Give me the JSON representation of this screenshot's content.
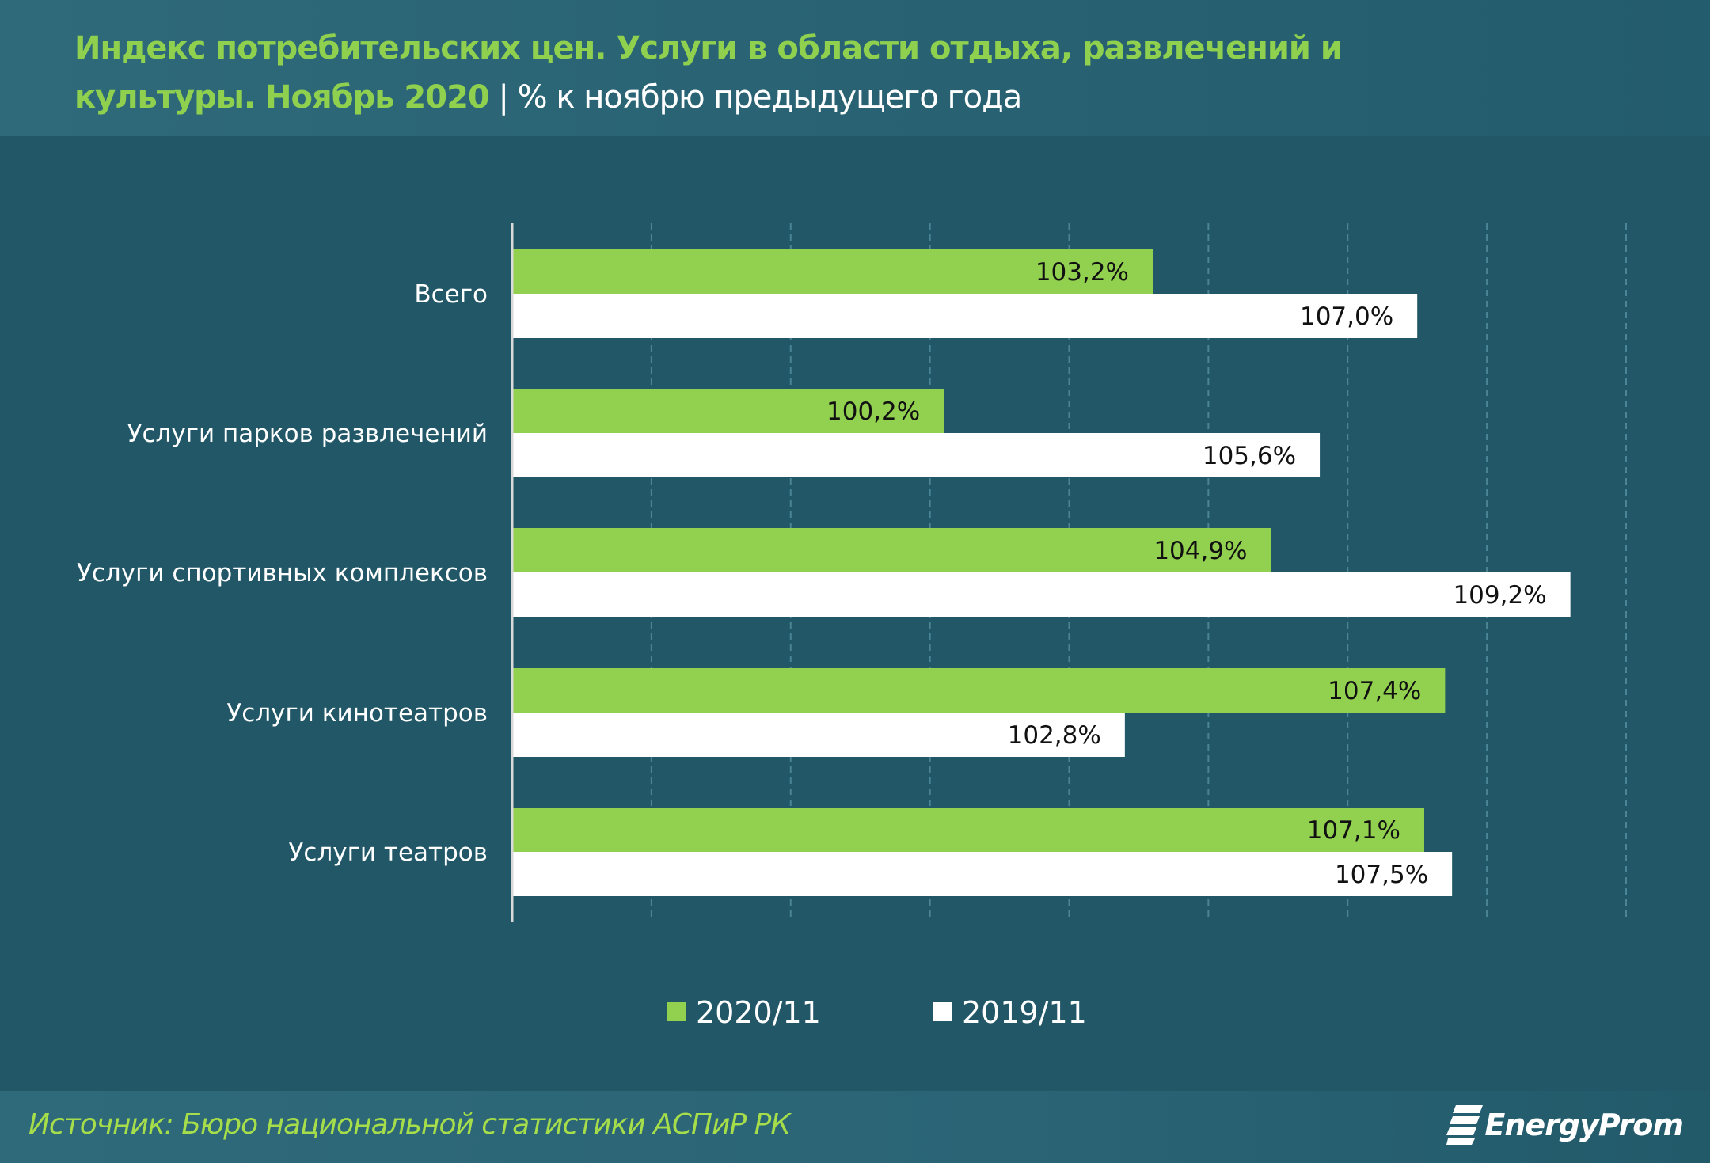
{
  "colors": {
    "series_2020": "#92d050",
    "series_2019": "#ffffff",
    "title": "#8fd14f",
    "background": "#215767"
  },
  "chart_data": {
    "type": "bar",
    "orientation": "horizontal",
    "title": "Индекс потребительских цен. Услуги в области отдыха, развлечений и культуры. Ноябрь 2020",
    "subtitle": "% к ноябрю предыдущего года",
    "categories": [
      "Всего",
      "Услуги парков развлечений",
      "Услуги спортивных комплексов",
      "Услуги кинотеатров",
      "Услуги театров"
    ],
    "series": [
      {
        "name": "2020/11",
        "values": [
          103.2,
          100.2,
          104.9,
          107.4,
          107.1
        ],
        "labels": [
          "103,2%",
          "100,2%",
          "104,9%",
          "107,4%",
          "107,1%"
        ]
      },
      {
        "name": "2019/11",
        "values": [
          107.0,
          105.6,
          109.2,
          102.8,
          107.5
        ],
        "labels": [
          "107,0%",
          "105,6%",
          "109,2%",
          "102,8%",
          "107,5%"
        ]
      }
    ],
    "xlim": [
      94,
      110
    ],
    "grid_step": 2,
    "grid": true,
    "tick_labels_shown": false,
    "legend_placement": "bottom"
  },
  "header": {
    "title_main": "Индекс потребительских цен. Услуги в области отдыха, развлечений и культуры. Ноябрь 2020",
    "separator": " | ",
    "title_sub": "% к ноябрю предыдущего года"
  },
  "footer": {
    "source": "Источник: Бюро национальной  статистики АСПиР РК",
    "logo": "EnergyProm"
  }
}
